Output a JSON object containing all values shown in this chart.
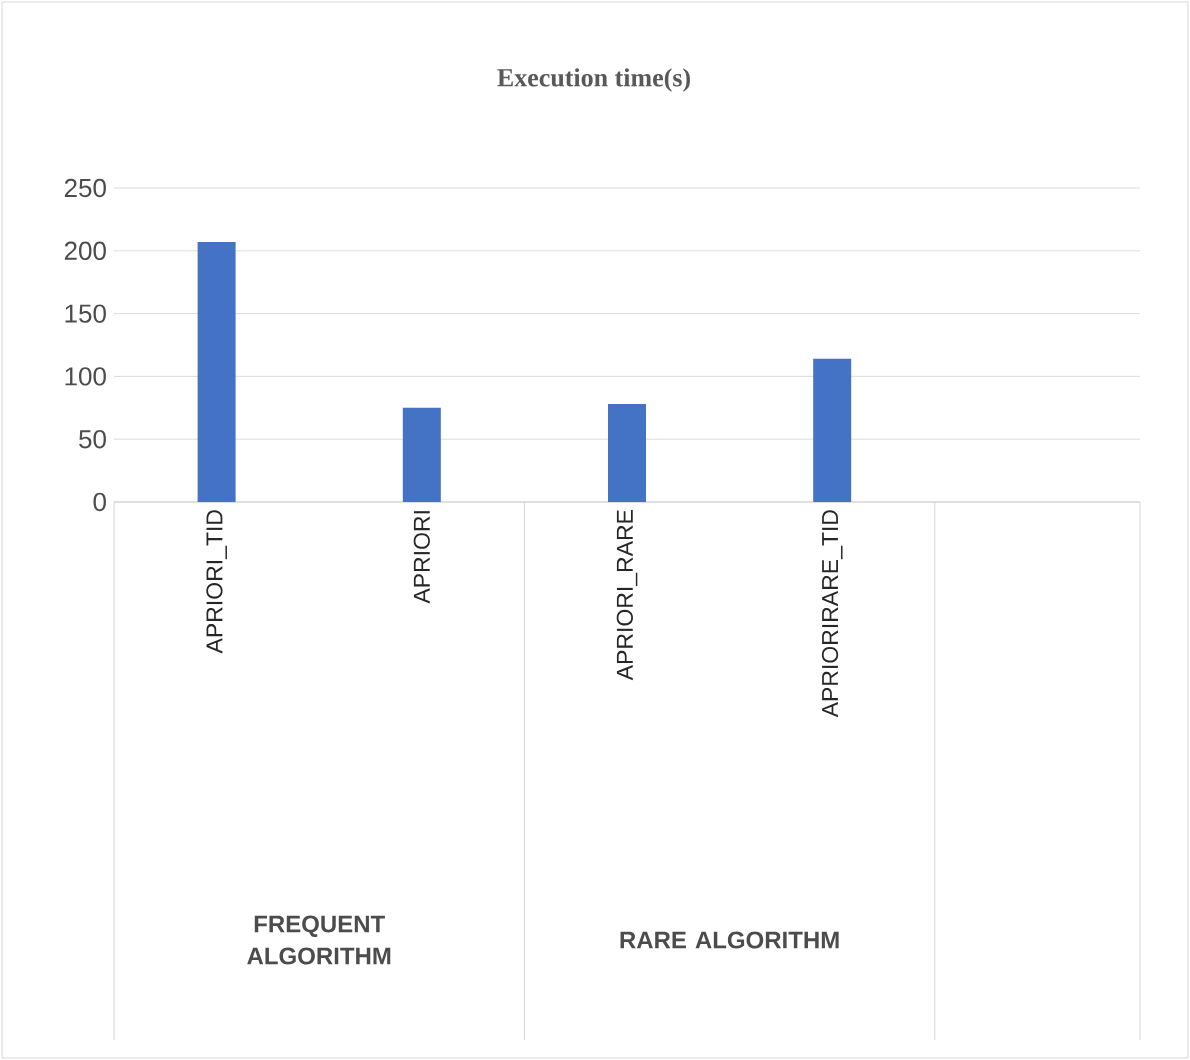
{
  "chart_data": {
    "type": "bar",
    "title": "Execution time(s)",
    "categories": [
      "APRIORI_TID",
      "APRIORI",
      "APRIORI_RARE",
      "APRIORIRARE_TID",
      null
    ],
    "values": [
      207,
      75,
      78,
      114,
      null
    ],
    "color": "#4472c4",
    "ylim": [
      0,
      250
    ],
    "yticks": [
      0,
      50,
      100,
      150,
      200,
      250
    ],
    "grid": "y",
    "annotations": [
      "FREQUENT ALGORITHM",
      "RARE ALGORITHM"
    ]
  }
}
